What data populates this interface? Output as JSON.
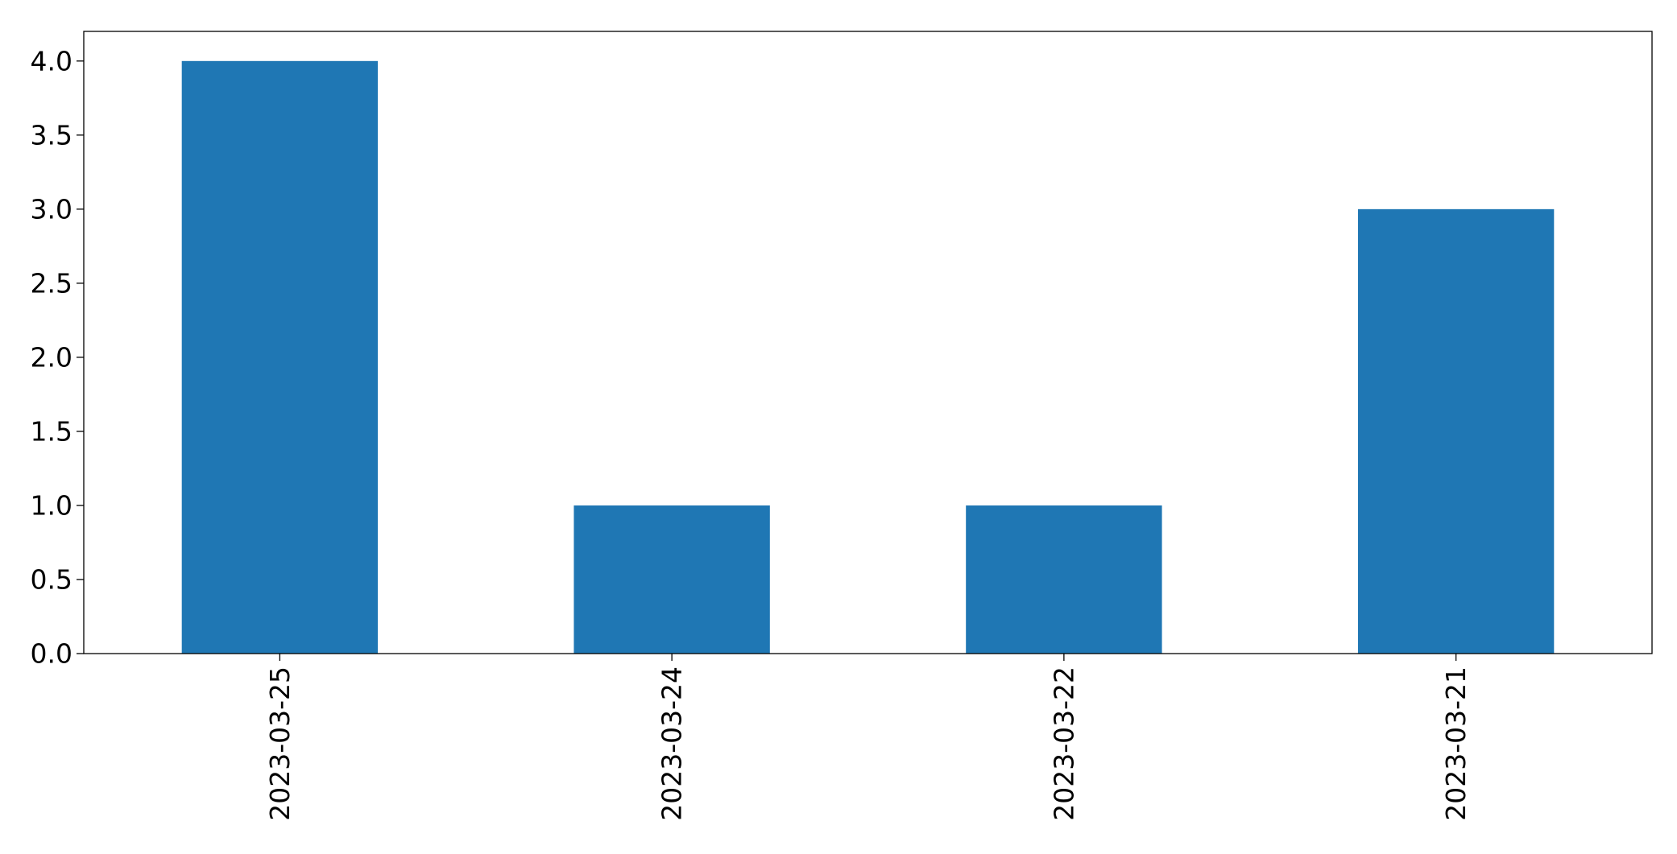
{
  "chart_data": {
    "type": "bar",
    "categories": [
      "2023-03-25",
      "2023-03-24",
      "2023-03-22",
      "2023-03-21"
    ],
    "values": [
      4,
      1,
      1,
      3
    ],
    "title": "",
    "xlabel": "",
    "ylabel": "",
    "ylim": [
      0,
      4.2
    ],
    "yticks": [
      0.0,
      0.5,
      1.0,
      1.5,
      2.0,
      2.5,
      3.0,
      3.5,
      4.0
    ],
    "ytick_labels": [
      "0.0",
      "0.5",
      "1.0",
      "1.5",
      "2.0",
      "2.5",
      "3.0",
      "3.5",
      "4.0"
    ],
    "bar_color": "#1f77b4",
    "grid": false,
    "legend": false,
    "x_tick_rotation": "vertical"
  }
}
